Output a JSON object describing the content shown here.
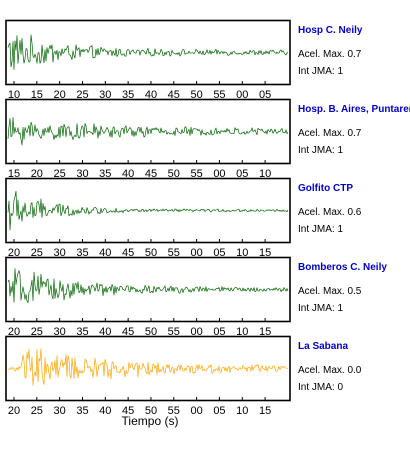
{
  "chart_data": [
    {
      "type": "line",
      "station": "Hosp C. Neily",
      "info": {
        "acel": "Acel. Max. 0.7",
        "jma": "Int JMA: 1"
      },
      "color": "#006400",
      "x_ticks": [
        "10",
        "15",
        "20",
        "25",
        "30",
        "35",
        "40",
        "45",
        "50",
        "55",
        "00",
        "05"
      ],
      "x_start": 10,
      "envelope": {
        "peak": 0.95,
        "decay": 0.09,
        "floor": 0.1
      }
    },
    {
      "type": "line",
      "station": "Hosp. B. Aires, Puntarenas",
      "info": {
        "acel": "Acel. Max. 0.7",
        "jma": "Int JMA: 1"
      },
      "color": "#006400",
      "x_ticks": [
        "15",
        "20",
        "25",
        "30",
        "35",
        "40",
        "45",
        "50",
        "55",
        "00",
        "05",
        "10"
      ],
      "x_start": 12,
      "envelope": {
        "peak": 0.55,
        "decay": 0.05,
        "floor": 0.12
      }
    },
    {
      "type": "line",
      "station": "Golfito CTP",
      "info": {
        "acel": "Acel. Max. 0.6",
        "jma": "Int JMA: 1"
      },
      "color": "#006400",
      "x_ticks": [
        "20",
        "25",
        "30",
        "35",
        "40",
        "45",
        "50",
        "55",
        "00",
        "05",
        "10",
        "15"
      ],
      "x_start": 19,
      "envelope": {
        "peak": 1.0,
        "decay": 0.12,
        "floor": 0.05
      }
    },
    {
      "type": "line",
      "station": "Bomberos C. Neily",
      "info": {
        "acel": "Acel. Max. 0.5",
        "jma": "Int JMA: 1"
      },
      "color": "#006400",
      "x_ticks": [
        "20",
        "25",
        "30",
        "35",
        "40",
        "45",
        "50",
        "55",
        "00",
        "05",
        "10",
        "15"
      ],
      "x_start": 19,
      "envelope": {
        "peak": 0.9,
        "decay": 0.07,
        "floor": 0.08
      }
    },
    {
      "type": "line",
      "station": "La Sabana",
      "info": {
        "acel": "Acel. Max. 0.0",
        "jma": "Int JMA: 0"
      },
      "color": "#ffa500",
      "x_ticks": [
        "20",
        "25",
        "30",
        "35",
        "40",
        "45",
        "50",
        "55",
        "00",
        "05",
        "10",
        "15"
      ],
      "x_start": 19,
      "envelope": {
        "peak": 0.85,
        "decay": 0.05,
        "floor": 0.1,
        "onset": 8
      }
    }
  ],
  "xlabel": "Tiempo (s)"
}
